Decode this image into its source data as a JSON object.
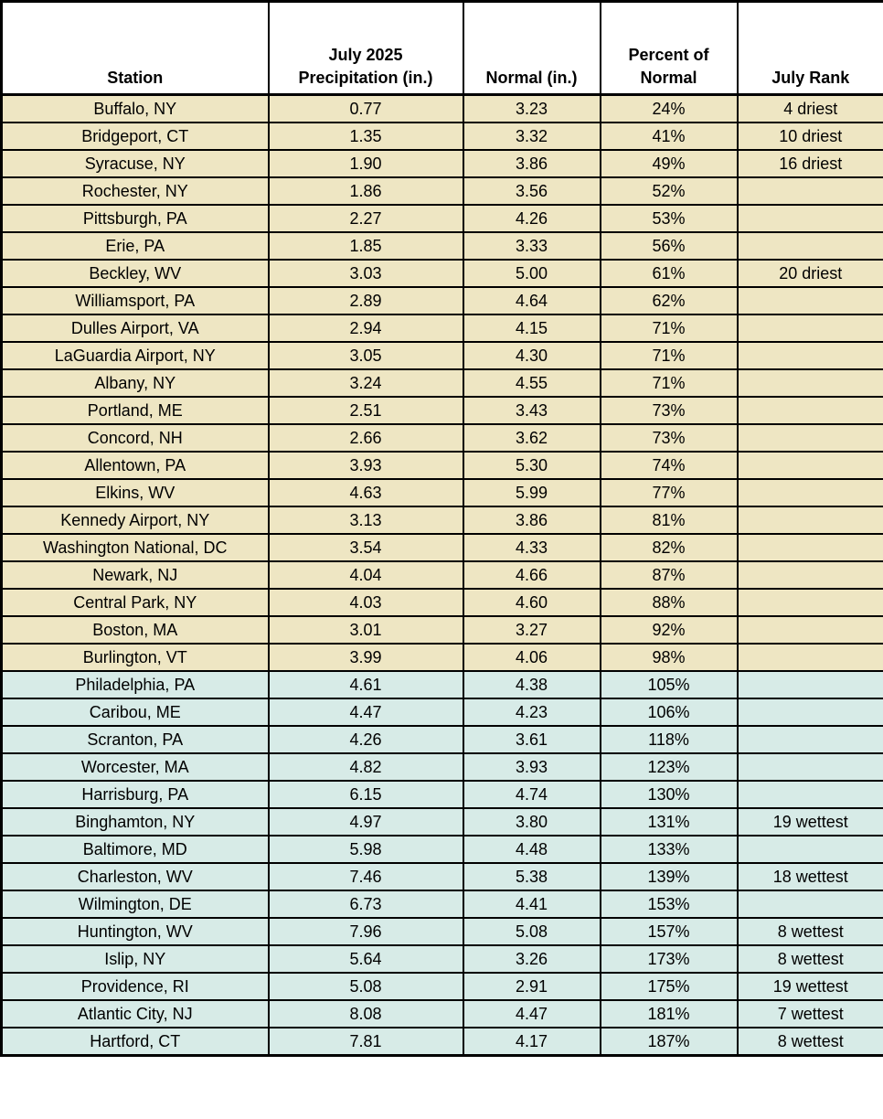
{
  "colors": {
    "below_normal_bg": "#EEE6C3",
    "above_normal_bg": "#D7EBE7",
    "header_bg": "#FFFFFF",
    "border": "#000000",
    "text": "#000000"
  },
  "table": {
    "headers": [
      "Station",
      "July 2025\nPrecipitation (in.)",
      "Normal (in.)",
      "Percent of\nNormal",
      "July Rank"
    ]
  },
  "chart_data": {
    "type": "table",
    "columns": [
      "Station",
      "July 2025 Precipitation (in.)",
      "Normal (in.)",
      "Percent of Normal",
      "July Rank"
    ],
    "rows": [
      {
        "station": "Buffalo, NY",
        "precip": "0.77",
        "normal": "3.23",
        "percent": "24%",
        "rank": "4 driest",
        "group": "below-normal"
      },
      {
        "station": "Bridgeport, CT",
        "precip": "1.35",
        "normal": "3.32",
        "percent": "41%",
        "rank": "10 driest",
        "group": "below-normal"
      },
      {
        "station": "Syracuse, NY",
        "precip": "1.90",
        "normal": "3.86",
        "percent": "49%",
        "rank": "16 driest",
        "group": "below-normal"
      },
      {
        "station": "Rochester, NY",
        "precip": "1.86",
        "normal": "3.56",
        "percent": "52%",
        "rank": "",
        "group": "below-normal"
      },
      {
        "station": "Pittsburgh, PA",
        "precip": "2.27",
        "normal": "4.26",
        "percent": "53%",
        "rank": "",
        "group": "below-normal"
      },
      {
        "station": "Erie, PA",
        "precip": "1.85",
        "normal": "3.33",
        "percent": "56%",
        "rank": "",
        "group": "below-normal"
      },
      {
        "station": "Beckley, WV",
        "precip": "3.03",
        "normal": "5.00",
        "percent": "61%",
        "rank": "20 driest",
        "group": "below-normal"
      },
      {
        "station": "Williamsport, PA",
        "precip": "2.89",
        "normal": "4.64",
        "percent": "62%",
        "rank": "",
        "group": "below-normal"
      },
      {
        "station": "Dulles Airport, VA",
        "precip": "2.94",
        "normal": "4.15",
        "percent": "71%",
        "rank": "",
        "group": "below-normal"
      },
      {
        "station": "LaGuardia Airport, NY",
        "precip": "3.05",
        "normal": "4.30",
        "percent": "71%",
        "rank": "",
        "group": "below-normal"
      },
      {
        "station": "Albany, NY",
        "precip": "3.24",
        "normal": "4.55",
        "percent": "71%",
        "rank": "",
        "group": "below-normal"
      },
      {
        "station": "Portland, ME",
        "precip": "2.51",
        "normal": "3.43",
        "percent": "73%",
        "rank": "",
        "group": "below-normal"
      },
      {
        "station": "Concord, NH",
        "precip": "2.66",
        "normal": "3.62",
        "percent": "73%",
        "rank": "",
        "group": "below-normal"
      },
      {
        "station": "Allentown, PA",
        "precip": "3.93",
        "normal": "5.30",
        "percent": "74%",
        "rank": "",
        "group": "below-normal"
      },
      {
        "station": "Elkins, WV",
        "precip": "4.63",
        "normal": "5.99",
        "percent": "77%",
        "rank": "",
        "group": "below-normal"
      },
      {
        "station": "Kennedy Airport, NY",
        "precip": "3.13",
        "normal": "3.86",
        "percent": "81%",
        "rank": "",
        "group": "below-normal"
      },
      {
        "station": "Washington National, DC",
        "precip": "3.54",
        "normal": "4.33",
        "percent": "82%",
        "rank": "",
        "group": "below-normal"
      },
      {
        "station": "Newark, NJ",
        "precip": "4.04",
        "normal": "4.66",
        "percent": "87%",
        "rank": "",
        "group": "below-normal"
      },
      {
        "station": "Central Park, NY",
        "precip": "4.03",
        "normal": "4.60",
        "percent": "88%",
        "rank": "",
        "group": "below-normal"
      },
      {
        "station": "Boston, MA",
        "precip": "3.01",
        "normal": "3.27",
        "percent": "92%",
        "rank": "",
        "group": "below-normal"
      },
      {
        "station": "Burlington, VT",
        "precip": "3.99",
        "normal": "4.06",
        "percent": "98%",
        "rank": "",
        "group": "below-normal"
      },
      {
        "station": "Philadelphia, PA",
        "precip": "4.61",
        "normal": "4.38",
        "percent": "105%",
        "rank": "",
        "group": "above-normal"
      },
      {
        "station": "Caribou, ME",
        "precip": "4.47",
        "normal": "4.23",
        "percent": "106%",
        "rank": "",
        "group": "above-normal"
      },
      {
        "station": "Scranton, PA",
        "precip": "4.26",
        "normal": "3.61",
        "percent": "118%",
        "rank": "",
        "group": "above-normal"
      },
      {
        "station": "Worcester, MA",
        "precip": "4.82",
        "normal": "3.93",
        "percent": "123%",
        "rank": "",
        "group": "above-normal"
      },
      {
        "station": "Harrisburg, PA",
        "precip": "6.15",
        "normal": "4.74",
        "percent": "130%",
        "rank": "",
        "group": "above-normal"
      },
      {
        "station": "Binghamton, NY",
        "precip": "4.97",
        "normal": "3.80",
        "percent": "131%",
        "rank": "19 wettest",
        "group": "above-normal"
      },
      {
        "station": "Baltimore, MD",
        "precip": "5.98",
        "normal": "4.48",
        "percent": "133%",
        "rank": "",
        "group": "above-normal"
      },
      {
        "station": "Charleston, WV",
        "precip": "7.46",
        "normal": "5.38",
        "percent": "139%",
        "rank": "18 wettest",
        "group": "above-normal"
      },
      {
        "station": "Wilmington, DE",
        "precip": "6.73",
        "normal": "4.41",
        "percent": "153%",
        "rank": "",
        "group": "above-normal"
      },
      {
        "station": "Huntington, WV",
        "precip": "7.96",
        "normal": "5.08",
        "percent": "157%",
        "rank": "8 wettest",
        "group": "above-normal"
      },
      {
        "station": "Islip, NY",
        "precip": "5.64",
        "normal": "3.26",
        "percent": "173%",
        "rank": "8 wettest",
        "group": "above-normal"
      },
      {
        "station": "Providence, RI",
        "precip": "5.08",
        "normal": "2.91",
        "percent": "175%",
        "rank": "19 wettest",
        "group": "above-normal"
      },
      {
        "station": "Atlantic City, NJ",
        "precip": "8.08",
        "normal": "4.47",
        "percent": "181%",
        "rank": "7 wettest",
        "group": "above-normal"
      },
      {
        "station": "Hartford, CT",
        "precip": "7.81",
        "normal": "4.17",
        "percent": "187%",
        "rank": "8 wettest",
        "group": "above-normal"
      }
    ]
  }
}
